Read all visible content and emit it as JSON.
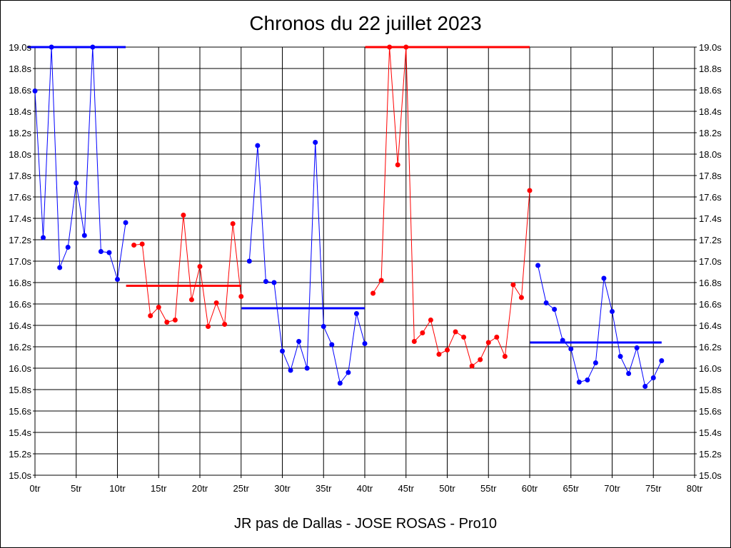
{
  "chart_data": {
    "type": "line",
    "title": "Chronos du 22 juillet 2023",
    "subtitle": "JR pas de Dallas - JOSE ROSAS - Pro10",
    "xlim": [
      0,
      80
    ],
    "ylim": [
      15.0,
      19.0
    ],
    "x_ticks": [
      "0tr",
      "5tr",
      "10tr",
      "15tr",
      "20tr",
      "25tr",
      "30tr",
      "35tr",
      "40tr",
      "45tr",
      "50tr",
      "55tr",
      "60tr",
      "65tr",
      "70tr",
      "75tr",
      "80tr"
    ],
    "y_ticks": [
      "15.0s",
      "15.2s",
      "15.4s",
      "15.6s",
      "15.8s",
      "16.0s",
      "16.2s",
      "16.4s",
      "16.6s",
      "16.8s",
      "17.0s",
      "17.2s",
      "17.4s",
      "17.6s",
      "17.8s",
      "18.0s",
      "18.2s",
      "18.4s",
      "18.6s",
      "18.8s",
      "19.0s"
    ],
    "grid": true,
    "colors": {
      "blue": "#0000ff",
      "red": "#ff0000"
    },
    "segments": [
      {
        "color": "blue",
        "x": [
          0,
          1,
          2,
          3,
          4,
          5,
          6,
          7,
          8,
          9,
          10,
          11
        ],
        "y": [
          18.59,
          17.22,
          19.0,
          16.94,
          17.13,
          17.73,
          17.24,
          19.0,
          17.09,
          17.08,
          16.83,
          17.36
        ],
        "mean": 19.0
      },
      {
        "color": "red",
        "x": [
          12,
          13,
          14,
          15,
          16,
          17,
          18,
          19,
          20,
          21,
          22,
          23,
          24,
          25
        ],
        "y": [
          17.15,
          17.16,
          16.49,
          16.57,
          16.43,
          16.45,
          17.43,
          16.64,
          16.95,
          16.39,
          16.61,
          16.41,
          17.35,
          16.67
        ],
        "mean": 16.77
      },
      {
        "color": "blue",
        "x": [
          26,
          27,
          28,
          29,
          30,
          31,
          32,
          33,
          34,
          35,
          36,
          37,
          38,
          39,
          40
        ],
        "y": [
          17.0,
          18.08,
          16.81,
          16.8,
          16.16,
          15.98,
          16.25,
          16.0,
          18.11,
          16.39,
          16.22,
          15.86,
          15.96,
          16.51,
          16.23
        ],
        "mean": 16.56
      },
      {
        "color": "red",
        "x": [
          41,
          42,
          43,
          44,
          45,
          46,
          47,
          48,
          49,
          50,
          51,
          52,
          53,
          54,
          55,
          56,
          57,
          58,
          59,
          60
        ],
        "y": [
          16.7,
          16.82,
          19.0,
          17.9,
          19.0,
          16.25,
          16.33,
          16.45,
          16.13,
          16.17,
          16.34,
          16.29,
          16.02,
          16.08,
          16.24,
          16.29,
          16.11,
          16.78,
          16.66,
          17.66
        ],
        "mean": 19.0
      },
      {
        "color": "blue",
        "x": [
          61,
          62,
          63,
          64,
          65,
          66,
          67,
          68,
          69,
          70,
          71,
          72,
          73,
          74,
          75,
          76
        ],
        "y": [
          16.96,
          16.61,
          16.55,
          16.26,
          16.18,
          15.87,
          15.89,
          16.05,
          16.84,
          16.53,
          16.11,
          15.95,
          16.19,
          15.83,
          15.91,
          16.07
        ],
        "mean": 16.24
      }
    ]
  }
}
